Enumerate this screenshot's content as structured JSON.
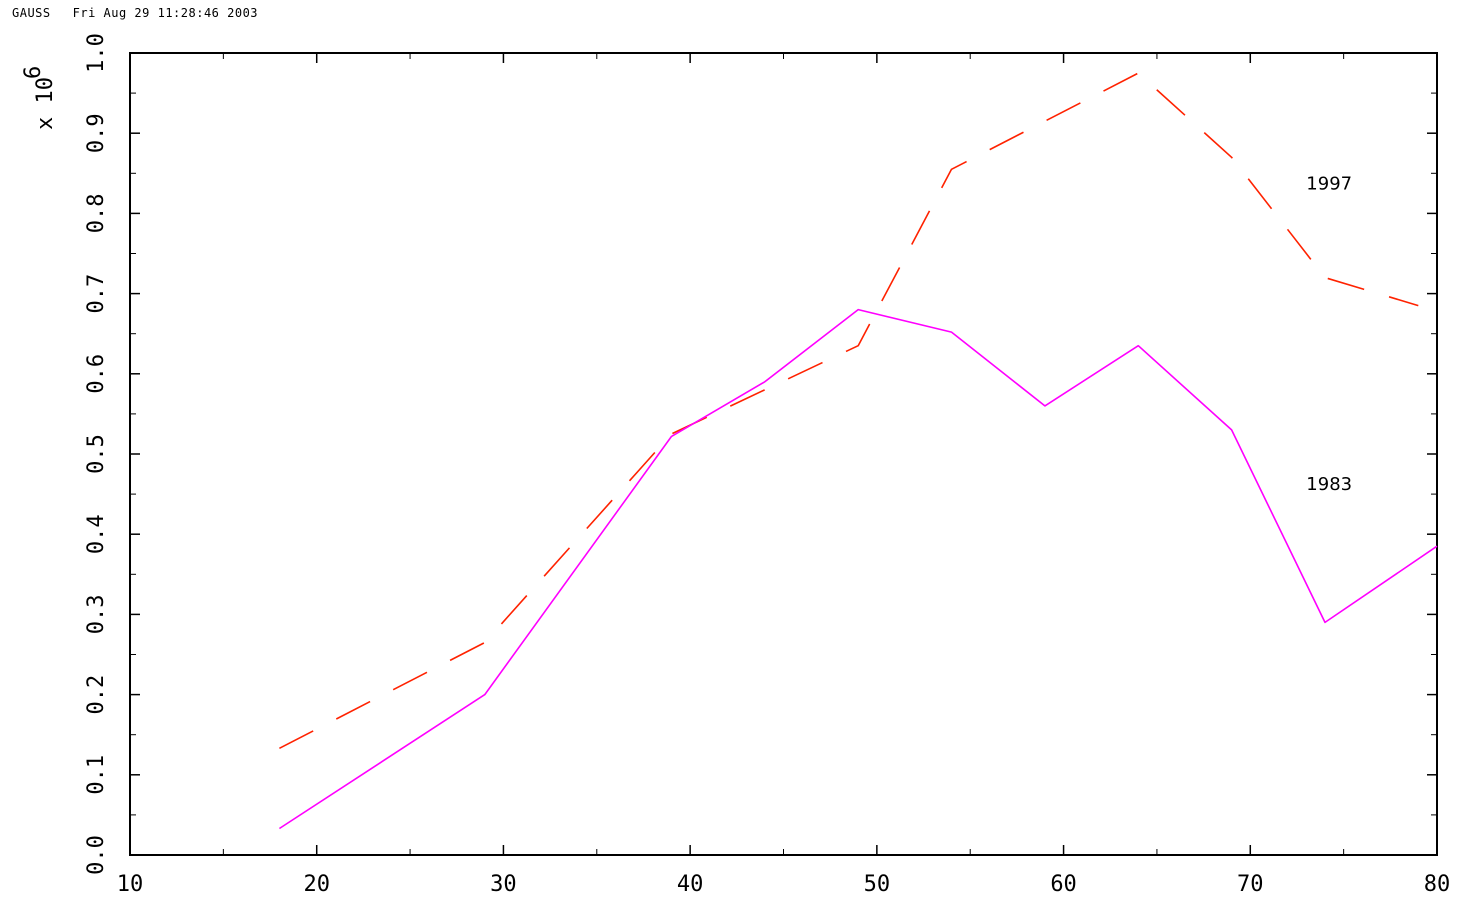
{
  "header": {
    "app_name": "GAUSS",
    "timestamp": "Fri Aug 29 11:28:46 2003"
  },
  "chart_data": {
    "type": "line",
    "title": "",
    "xlabel": "",
    "ylabel": "",
    "y_multiplier_label": "x 10",
    "y_multiplier_exponent": "6",
    "xlim": [
      10,
      80
    ],
    "ylim": [
      0.0,
      1.0
    ],
    "x_ticks": [
      10,
      20,
      30,
      40,
      50,
      60,
      70,
      80
    ],
    "x_tick_labels": [
      "10",
      "20",
      "30",
      "40",
      "50",
      "60",
      "70",
      "80"
    ],
    "y_ticks": [
      0.0,
      0.1,
      0.2,
      0.3,
      0.4,
      0.5,
      0.6,
      0.7,
      0.8,
      0.9,
      1.0
    ],
    "y_tick_labels": [
      "0.0",
      "0.1",
      "0.2",
      "0.3",
      "0.4",
      "0.5",
      "0.6",
      "0.7",
      "0.8",
      "0.9",
      "1.0"
    ],
    "grid": false,
    "series": [
      {
        "name": "1997",
        "color": "#ff2200",
        "style": "dashed",
        "x": [
          18,
          29,
          39,
          49,
          54,
          59,
          64,
          69,
          74,
          79
        ],
        "y": [
          0.133,
          0.265,
          0.525,
          0.635,
          0.855,
          0.915,
          0.975,
          0.87,
          0.72,
          0.685
        ],
        "label_position": [
          73,
          0.83
        ]
      },
      {
        "name": "1983",
        "color": "#ff00ff",
        "style": "solid",
        "x": [
          18,
          29,
          39,
          44,
          49,
          54,
          59,
          64,
          69,
          74,
          80
        ],
        "y": [
          0.033,
          0.2,
          0.522,
          0.59,
          0.68,
          0.652,
          0.56,
          0.635,
          0.53,
          0.29,
          0.385
        ],
        "label_position": [
          73,
          0.455
        ]
      }
    ]
  }
}
